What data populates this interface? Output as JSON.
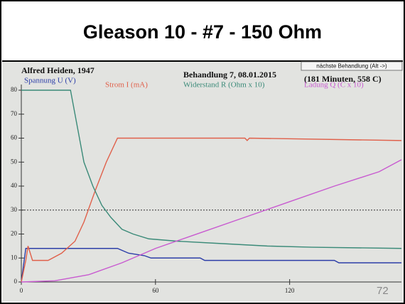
{
  "chart_data": {
    "type": "line",
    "title": "Gleason 10  -  #7  -  150 Ohm",
    "patient": "Alfred Heiden, 1947",
    "session": "Behandlung 7, 08.01.2015",
    "summary": "(181 Minuten, 558 C)",
    "button": "nächste Behandlung (Alt ->)",
    "slide_number": "72",
    "xlim": [
      0,
      170
    ],
    "ylim": [
      0,
      80
    ],
    "xticks": [
      0,
      60,
      120
    ],
    "yticks": [
      0,
      10,
      20,
      30,
      40,
      50,
      60,
      70,
      80
    ],
    "reference_line": 30,
    "series": [
      {
        "name": "Spannung U (V)",
        "color": "#2c3ea8",
        "x": [
          0,
          2,
          43,
          48,
          55,
          58,
          80,
          82,
          140,
          142,
          170
        ],
        "values": [
          0,
          14,
          14,
          12,
          11,
          10,
          10,
          9,
          9,
          8,
          8
        ]
      },
      {
        "name": "Strom I (mA)",
        "color": "#e0604a",
        "x": [
          0,
          2,
          3,
          5,
          12,
          18,
          24,
          28,
          33,
          38,
          43,
          100,
          101,
          102,
          170
        ],
        "values": [
          0,
          9,
          15,
          9,
          9,
          12,
          17,
          25,
          38,
          50,
          60,
          60,
          59,
          60,
          59
        ]
      },
      {
        "name": "Widerstand R (Ohm x 10)",
        "color": "#3a8a78",
        "x": [
          0,
          22,
          25,
          28,
          32,
          36,
          40,
          45,
          50,
          57,
          70,
          90,
          110,
          130,
          170
        ],
        "values": [
          80,
          80,
          65,
          50,
          40,
          32,
          27,
          22,
          20,
          18,
          17,
          16,
          15,
          14.5,
          14
        ]
      },
      {
        "name": "Ladung Q (C x 10)",
        "color": "#c85ad0",
        "x": [
          0,
          15,
          30,
          45,
          60,
          80,
          100,
          120,
          140,
          160,
          170
        ],
        "values": [
          0,
          0.5,
          3,
          8,
          14,
          20.5,
          27,
          33.5,
          40,
          46,
          51
        ]
      }
    ]
  }
}
